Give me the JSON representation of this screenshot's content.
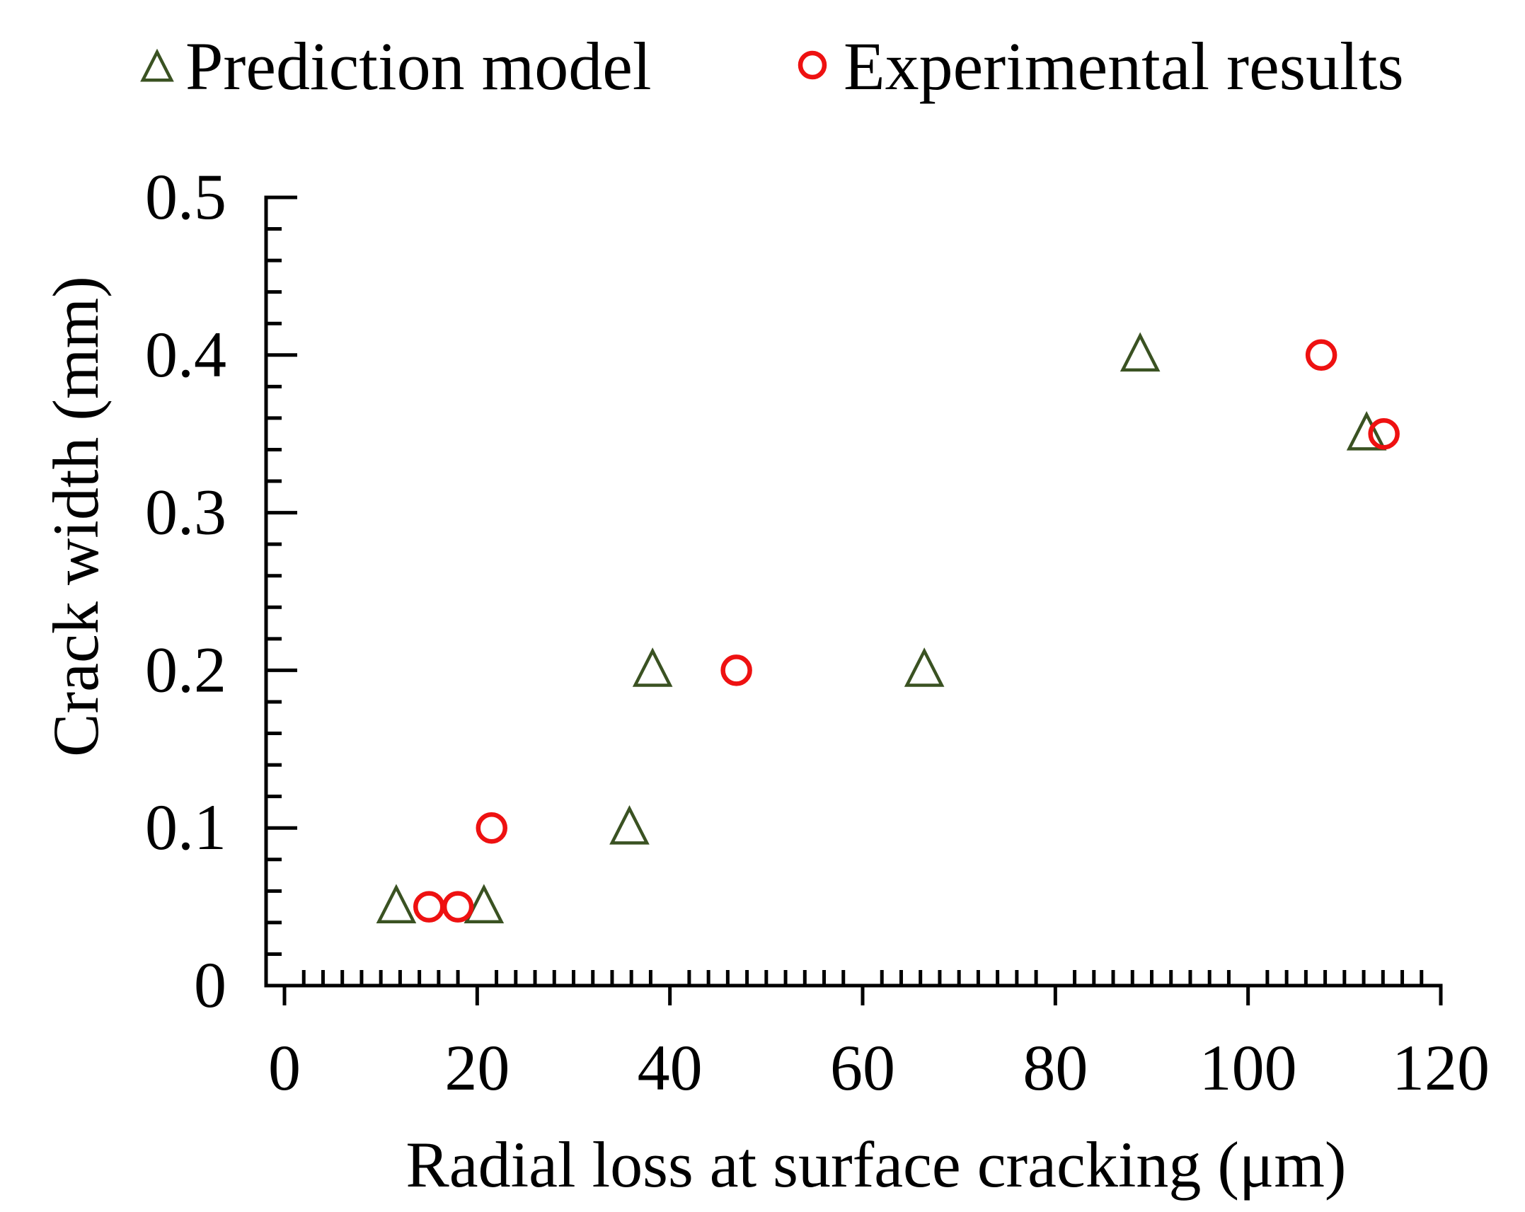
{
  "chart_data": {
    "type": "scatter",
    "xlabel": "Radial loss at surface cracking (μm)",
    "ylabel": "Crack width (mm)",
    "xlim": [
      0,
      120
    ],
    "ylim": [
      0,
      0.5
    ],
    "x_ticks": [
      0,
      20,
      40,
      60,
      80,
      100,
      120
    ],
    "x_tick_labels": [
      "0",
      "20",
      "40",
      "60",
      "80",
      "100",
      "120"
    ],
    "y_ticks": [
      0,
      0.1,
      0.2,
      0.3,
      0.4,
      0.5
    ],
    "y_tick_labels": [
      "0",
      "0.1",
      "0.2",
      "0.3",
      "0.4",
      "0.5"
    ],
    "x_minor_step": 2,
    "y_minor_step": 0.02,
    "legend_position": "top",
    "grid": false,
    "series": [
      {
        "name": "Prediction model",
        "marker": "triangle",
        "color": "#3a5222",
        "points": [
          {
            "x": 11.6,
            "y": 0.05
          },
          {
            "x": 20.7,
            "y": 0.05
          },
          {
            "x": 35.8,
            "y": 0.1
          },
          {
            "x": 38.2,
            "y": 0.2
          },
          {
            "x": 66.4,
            "y": 0.2
          },
          {
            "x": 88.8,
            "y": 0.4
          },
          {
            "x": 112.3,
            "y": 0.35
          }
        ]
      },
      {
        "name": "Experimental results",
        "marker": "circle",
        "color": "#ee1111",
        "points": [
          {
            "x": 15.0,
            "y": 0.05
          },
          {
            "x": 18.0,
            "y": 0.05
          },
          {
            "x": 21.5,
            "y": 0.1
          },
          {
            "x": 46.9,
            "y": 0.2
          },
          {
            "x": 107.6,
            "y": 0.4
          },
          {
            "x": 114.1,
            "y": 0.35
          }
        ]
      }
    ]
  }
}
